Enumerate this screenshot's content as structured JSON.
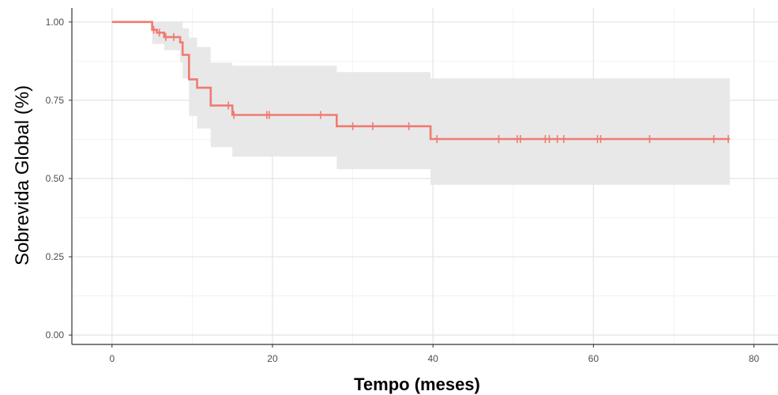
{
  "chart_data": {
    "type": "line",
    "subtype": "kaplan-meier",
    "title": "",
    "xlabel": "Tempo (meses)",
    "ylabel": "Sobrevida Global (%)",
    "xlim": [
      -5,
      83
    ],
    "ylim": [
      -0.03,
      1.045
    ],
    "xticks": [
      0,
      20,
      40,
      60,
      80
    ],
    "xtick_labels": [
      "0",
      "20",
      "40",
      "60",
      "80"
    ],
    "yticks": [
      0,
      0.25,
      0.5,
      0.75,
      1.0
    ],
    "ytick_labels": [
      "0.00",
      "0.25",
      "0.50",
      "0.75",
      "1.00"
    ],
    "grid": true,
    "legend": "none",
    "colors": {
      "line": "#f07a70",
      "ci_band": "#e6e6e6",
      "grid_major": "#e3e3e3",
      "grid_minor": "#f0f0f0",
      "axis": "#333333"
    },
    "series": [
      {
        "steps": [
          {
            "x": 0,
            "y": 1.0
          },
          {
            "x": 5.0,
            "y": 0.975
          },
          {
            "x": 5.6,
            "y": 0.966
          },
          {
            "x": 6.5,
            "y": 0.952
          },
          {
            "x": 8.5,
            "y": 0.935
          },
          {
            "x": 8.8,
            "y": 0.895
          },
          {
            "x": 9.6,
            "y": 0.817
          },
          {
            "x": 10.6,
            "y": 0.79
          },
          {
            "x": 12.3,
            "y": 0.733
          },
          {
            "x": 15.0,
            "y": 0.703
          },
          {
            "x": 28.0,
            "y": 0.667
          },
          {
            "x": 39.7,
            "y": 0.626
          }
        ],
        "end_x": 77,
        "censored": [
          {
            "x": 5.2,
            "y": 0.975
          },
          {
            "x": 5.9,
            "y": 0.966
          },
          {
            "x": 6.7,
            "y": 0.952
          },
          {
            "x": 7.7,
            "y": 0.952
          },
          {
            "x": 14.5,
            "y": 0.733
          },
          {
            "x": 15.2,
            "y": 0.703
          },
          {
            "x": 19.3,
            "y": 0.703
          },
          {
            "x": 19.6,
            "y": 0.703
          },
          {
            "x": 26.0,
            "y": 0.703
          },
          {
            "x": 30.0,
            "y": 0.667
          },
          {
            "x": 32.5,
            "y": 0.667
          },
          {
            "x": 37.0,
            "y": 0.667
          },
          {
            "x": 40.5,
            "y": 0.626
          },
          {
            "x": 48.2,
            "y": 0.626
          },
          {
            "x": 50.5,
            "y": 0.626
          },
          {
            "x": 50.9,
            "y": 0.626
          },
          {
            "x": 54.0,
            "y": 0.626
          },
          {
            "x": 54.5,
            "y": 0.626
          },
          {
            "x": 55.5,
            "y": 0.626
          },
          {
            "x": 56.3,
            "y": 0.626
          },
          {
            "x": 60.5,
            "y": 0.626
          },
          {
            "x": 60.9,
            "y": 0.626
          },
          {
            "x": 67.0,
            "y": 0.626
          },
          {
            "x": 75.0,
            "y": 0.626
          },
          {
            "x": 76.8,
            "y": 0.626
          }
        ],
        "ci": [
          {
            "x": 0,
            "lower": 1.0,
            "upper": 1.0
          },
          {
            "x": 5.0,
            "lower": 0.93,
            "upper": 1.0
          },
          {
            "x": 6.5,
            "lower": 0.91,
            "upper": 1.0
          },
          {
            "x": 8.5,
            "lower": 0.87,
            "upper": 1.0
          },
          {
            "x": 8.8,
            "lower": 0.82,
            "upper": 0.98
          },
          {
            "x": 9.6,
            "lower": 0.7,
            "upper": 0.95
          },
          {
            "x": 10.6,
            "lower": 0.66,
            "upper": 0.92
          },
          {
            "x": 12.3,
            "lower": 0.6,
            "upper": 0.87
          },
          {
            "x": 15.0,
            "lower": 0.57,
            "upper": 0.86
          },
          {
            "x": 28.0,
            "lower": 0.53,
            "upper": 0.84
          },
          {
            "x": 39.7,
            "lower": 0.48,
            "upper": 0.82
          }
        ]
      }
    ]
  }
}
